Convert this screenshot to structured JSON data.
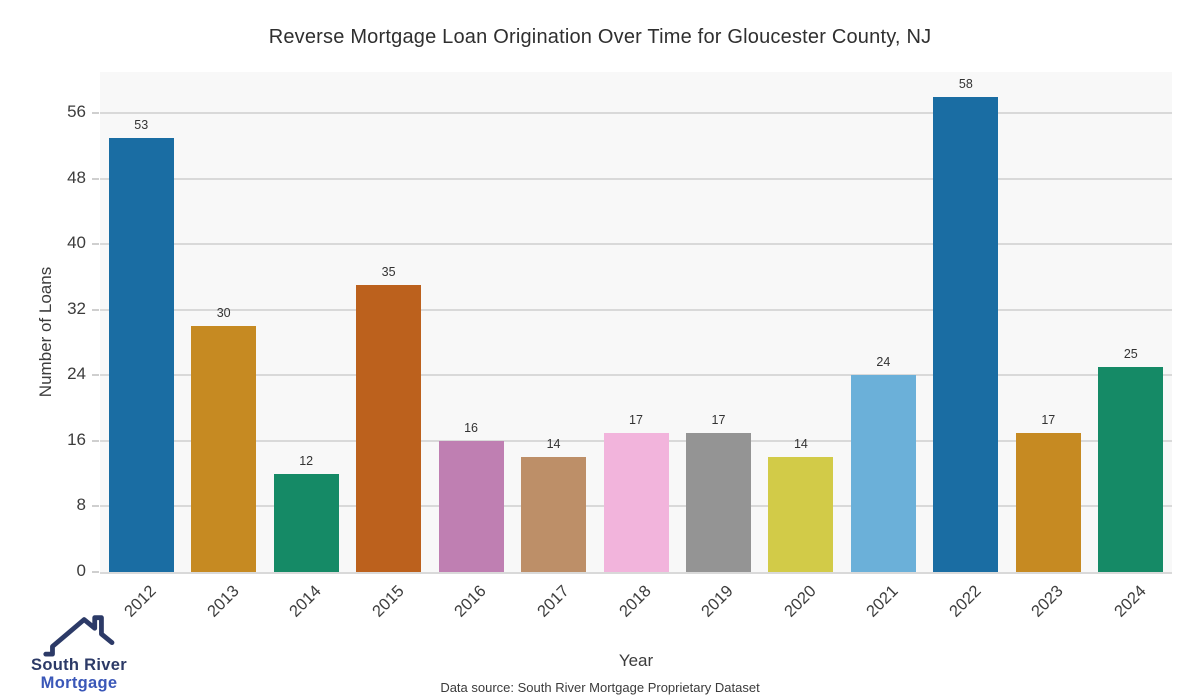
{
  "title": "Reverse Mortgage Loan Origination Over Time for Gloucester County, NJ",
  "chart_data": {
    "type": "bar",
    "categories": [
      "2012",
      "2013",
      "2014",
      "2015",
      "2016",
      "2017",
      "2018",
      "2019",
      "2020",
      "2021",
      "2022",
      "2023",
      "2024"
    ],
    "values": [
      53,
      30,
      12,
      35,
      16,
      14,
      17,
      17,
      14,
      24,
      58,
      17,
      25
    ],
    "bar_colors": [
      "#1a6da3",
      "#c68a22",
      "#158a66",
      "#bc611d",
      "#bf7fb2",
      "#bd8f68",
      "#f2b4dc",
      "#949494",
      "#d2cb48",
      "#6bb0d9",
      "#1a6da3",
      "#c68a22",
      "#158a66"
    ],
    "title": "Reverse Mortgage Loan Origination Over Time for Gloucester County, NJ",
    "xlabel": "Year",
    "ylabel": "Number of Loans",
    "yticks": [
      0,
      8,
      16,
      24,
      32,
      40,
      48,
      56
    ],
    "ylim": [
      0,
      61
    ],
    "grid": true,
    "legend": "none",
    "plot_background": "#f8f8f8",
    "gridline_color": "#d9d9d9"
  },
  "footnote": "Data source: South River Mortgage Proprietary Dataset",
  "logo": {
    "icon": "house-roof-icon",
    "line1": "South River",
    "line2": "Mortgage",
    "color_line1": "#2c3a67",
    "color_line2": "#3a57b8"
  }
}
